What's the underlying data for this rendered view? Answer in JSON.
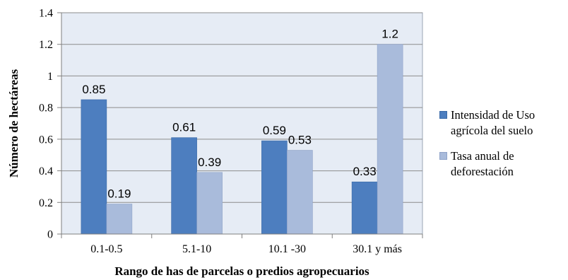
{
  "chart_data": {
    "type": "bar",
    "categories": [
      "0.1-0.5",
      "5.1-10",
      "10.1 -30",
      "30.1 y más"
    ],
    "series": [
      {
        "name": "Intensidad de Uso agrícola del suelo",
        "values": [
          0.85,
          0.61,
          0.59,
          0.33
        ],
        "color": "#4d7ebf",
        "labels": [
          "0.85",
          "0.61",
          "0.59",
          "0.33"
        ]
      },
      {
        "name": "Tasa anual de deforestación",
        "values": [
          0.19,
          0.39,
          0.53,
          1.2
        ],
        "color": "#a9bbdb",
        "labels": [
          "0.19",
          "0.39",
          "0.53",
          "1.2"
        ]
      }
    ],
    "xlabel": "Rango de has de parcelas o predios  agropecuarios",
    "ylabel": "Número de hectáreas",
    "ylim": [
      0,
      1.4
    ],
    "yticks": [
      0,
      0.2,
      0.4,
      0.6,
      0.8,
      1,
      1.2,
      1.4
    ],
    "ytick_labels": [
      "0",
      "0.2",
      "0.4",
      "0.6",
      "0.8",
      "1",
      "1.2",
      "1.4"
    ],
    "grid": true,
    "legend_position": "right",
    "plot_background": "#e6ecf5"
  }
}
